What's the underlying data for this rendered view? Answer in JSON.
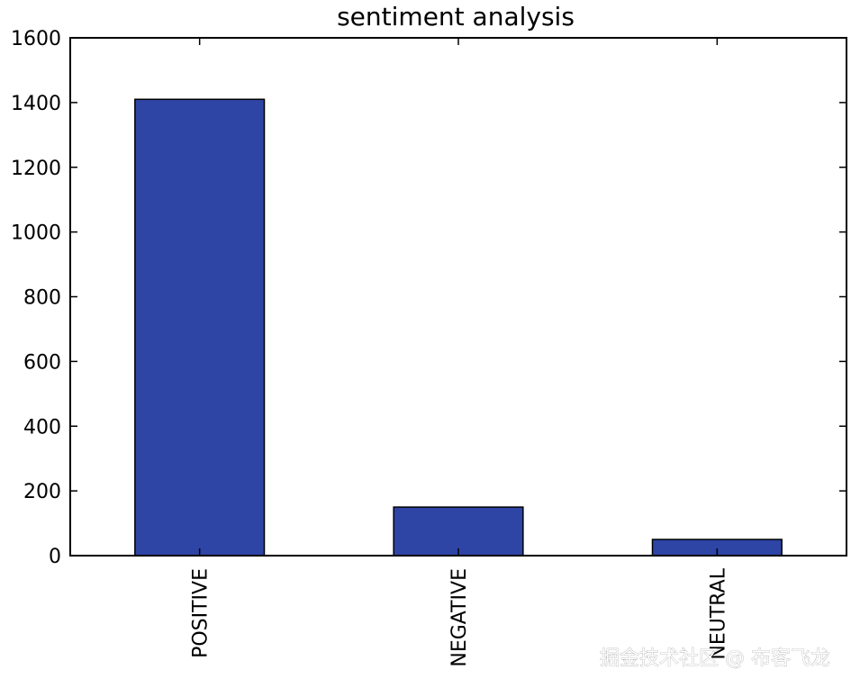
{
  "chart_data": {
    "type": "bar",
    "title": "sentiment analysis",
    "xlabel": "",
    "ylabel": "",
    "categories": [
      "POSITIVE",
      "NEGATIVE",
      "NEUTRAL"
    ],
    "values": [
      1410,
      150,
      50
    ],
    "ylim": [
      0,
      1600
    ],
    "yticks": [
      0,
      200,
      400,
      600,
      800,
      1000,
      1200,
      1400,
      1600
    ],
    "grid": false,
    "legend": "none",
    "bar_color": "#2e45a5",
    "edge_color": "#000000"
  },
  "watermark": {
    "text": "掘金技术社区 @ 布客飞龙"
  }
}
